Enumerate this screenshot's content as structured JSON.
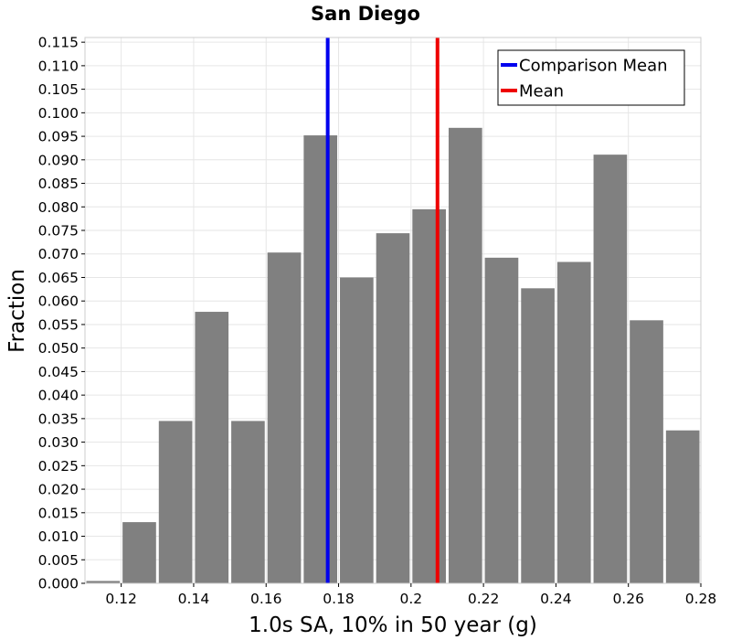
{
  "chart_data": {
    "type": "bar",
    "title": "San Diego",
    "xlabel": "1.0s SA, 10% in 50 year (g)",
    "ylabel": "Fraction",
    "xlim": [
      0.11,
      0.28
    ],
    "ylim": [
      0,
      0.116
    ],
    "bin_width": 0.01,
    "bins": [
      {
        "center": 0.115,
        "value": 0.0005
      },
      {
        "center": 0.125,
        "value": 0.013
      },
      {
        "center": 0.135,
        "value": 0.0345
      },
      {
        "center": 0.145,
        "value": 0.0577
      },
      {
        "center": 0.155,
        "value": 0.0345
      },
      {
        "center": 0.165,
        "value": 0.0703
      },
      {
        "center": 0.175,
        "value": 0.0952
      },
      {
        "center": 0.185,
        "value": 0.065
      },
      {
        "center": 0.195,
        "value": 0.0744
      },
      {
        "center": 0.205,
        "value": 0.0795
      },
      {
        "center": 0.215,
        "value": 0.0968
      },
      {
        "center": 0.225,
        "value": 0.0692
      },
      {
        "center": 0.235,
        "value": 0.0627
      },
      {
        "center": 0.245,
        "value": 0.0683
      },
      {
        "center": 0.255,
        "value": 0.0911
      },
      {
        "center": 0.265,
        "value": 0.0559
      },
      {
        "center": 0.275,
        "value": 0.0325
      }
    ],
    "x_ticks": [
      "0.12",
      "0.14",
      "0.16",
      "0.18",
      "0.2",
      "0.22",
      "0.24",
      "0.26",
      "0.28"
    ],
    "y_ticks": [
      "0.000",
      "0.005",
      "0.010",
      "0.015",
      "0.020",
      "0.025",
      "0.030",
      "0.035",
      "0.040",
      "0.045",
      "0.050",
      "0.055",
      "0.060",
      "0.065",
      "0.070",
      "0.075",
      "0.080",
      "0.085",
      "0.090",
      "0.095",
      "0.100",
      "0.105",
      "0.110",
      "0.115"
    ],
    "lines": [
      {
        "name": "Comparison Mean",
        "x": 0.177,
        "color": "#0000ee"
      },
      {
        "name": "Mean",
        "x": 0.2073,
        "color": "#ee0000"
      }
    ],
    "bar_color": "#808080",
    "grid": true,
    "legend_position": "top-right"
  }
}
